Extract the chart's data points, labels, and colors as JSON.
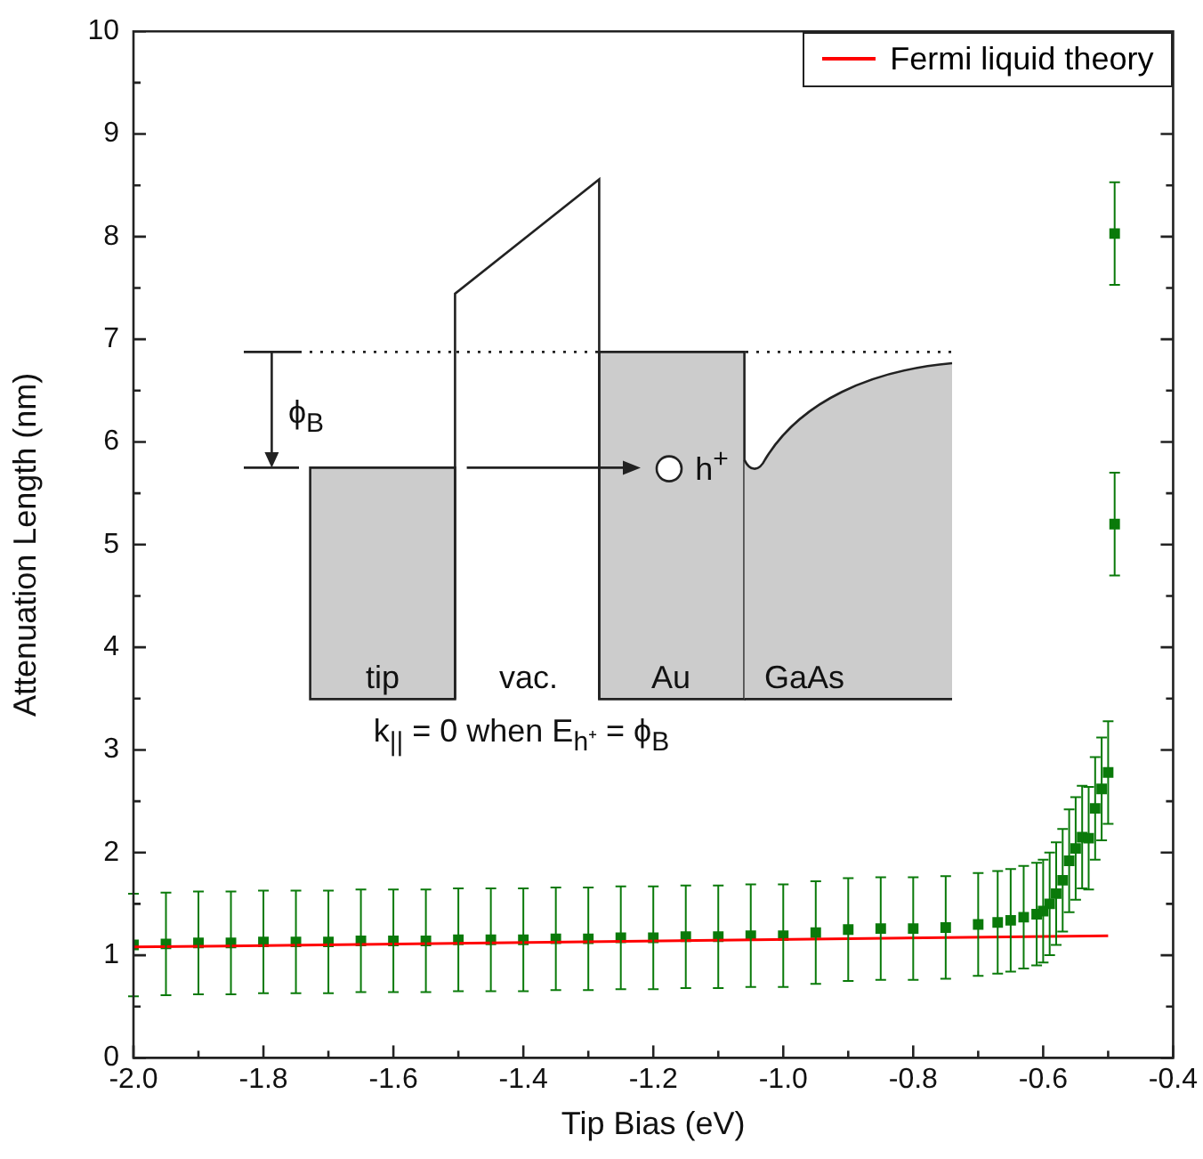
{
  "chart_data": {
    "type": "scatter",
    "xlabel": "Tip Bias (eV)",
    "ylabel": "Attenuation Length (nm)",
    "xlim": [
      -2,
      -0.4
    ],
    "ylim": [
      0,
      10
    ],
    "xticks": [
      {
        "value": -2,
        "label": "-2.0"
      },
      {
        "value": -1.9,
        "label": null
      },
      {
        "value": -1.8,
        "label": "-1.8"
      },
      {
        "value": -1.7,
        "label": null
      },
      {
        "value": -1.6,
        "label": "-1.6"
      },
      {
        "value": -1.5,
        "label": null
      },
      {
        "value": -1.4,
        "label": "-1.4"
      },
      {
        "value": -1.3,
        "label": null
      },
      {
        "value": -1.2,
        "label": "-1.2"
      },
      {
        "value": -1.1,
        "label": null
      },
      {
        "value": -1,
        "label": "-1.0"
      },
      {
        "value": -0.9,
        "label": null
      },
      {
        "value": -0.8,
        "label": "-0.8"
      },
      {
        "value": -0.7,
        "label": null
      },
      {
        "value": -0.6,
        "label": "-0.6"
      },
      {
        "value": -0.5,
        "label": null
      },
      {
        "value": -0.4,
        "label": "-0.4"
      }
    ],
    "yticks": [
      0,
      {
        "value": 0.5,
        "label": null
      },
      1,
      {
        "value": 1.5,
        "label": null
      },
      2,
      {
        "value": 2.5,
        "label": null
      },
      3,
      {
        "value": 3.5,
        "label": null
      },
      4,
      {
        "value": 4.5,
        "label": null
      },
      5,
      {
        "value": 5.5,
        "label": null
      },
      6,
      {
        "value": 6.5,
        "label": null
      },
      7,
      {
        "value": 7.5,
        "label": null
      },
      8,
      {
        "value": 8.5,
        "label": null
      },
      9,
      {
        "value": 9.5,
        "label": null
      },
      10
    ],
    "grid": false,
    "legend": "top right",
    "marker": "square",
    "series": [
      {
        "color": "#0a7a0a",
        "x": [
          -2,
          -1.95,
          -1.9,
          -1.85,
          -1.8,
          -1.75,
          -1.7,
          -1.65,
          -1.6,
          -1.55,
          -1.5,
          -1.45,
          -1.4,
          -1.35,
          -1.3,
          -1.25,
          -1.2,
          -1.15,
          -1.1,
          -1.05,
          -1,
          -0.95,
          -0.9,
          -0.85,
          -0.8,
          -0.75,
          -0.7,
          -0.67,
          -0.65,
          -0.63,
          -0.61,
          -0.6,
          -0.59,
          -0.58,
          -0.57,
          -0.56,
          -0.55,
          -0.54,
          -0.53,
          -0.52,
          -0.51,
          -0.5,
          -0.49,
          -0.49
        ],
        "values": [
          1.1,
          1.11,
          1.12,
          1.12,
          1.13,
          1.13,
          1.13,
          1.14,
          1.14,
          1.14,
          1.15,
          1.15,
          1.15,
          1.16,
          1.16,
          1.17,
          1.17,
          1.18,
          1.18,
          1.19,
          1.19,
          1.22,
          1.25,
          1.26,
          1.26,
          1.27,
          1.3,
          1.32,
          1.34,
          1.37,
          1.4,
          1.43,
          1.5,
          1.6,
          1.73,
          1.92,
          2.04,
          2.15,
          2.14,
          2.43,
          2.62,
          2.78,
          5.2,
          8.03
        ],
        "errors": [
          0.5,
          0.5,
          0.5,
          0.5,
          0.5,
          0.5,
          0.5,
          0.5,
          0.5,
          0.5,
          0.5,
          0.5,
          0.5,
          0.5,
          0.5,
          0.5,
          0.5,
          0.5,
          0.5,
          0.5,
          0.5,
          0.5,
          0.5,
          0.5,
          0.5,
          0.5,
          0.5,
          0.5,
          0.5,
          0.5,
          0.5,
          0.5,
          0.5,
          0.5,
          0.5,
          0.5,
          0.5,
          0.5,
          0.5,
          0.5,
          0.5,
          0.5,
          0.5,
          0.5
        ]
      },
      {
        "type": "line",
        "name": "Fermi liquid theory",
        "color": "#ff0000",
        "x": [
          -2,
          -0.5
        ],
        "values": [
          1.08,
          1.19
        ],
        "marker": "none"
      }
    ],
    "annotations": [
      "tip",
      "vac.",
      "Au",
      "GaAs",
      "ϕ$_{B}$",
      "h$^{+}$",
      "k$_{||}$ = 0 when E$_{h⁺}$ = ϕ$_{B}$"
    ]
  }
}
